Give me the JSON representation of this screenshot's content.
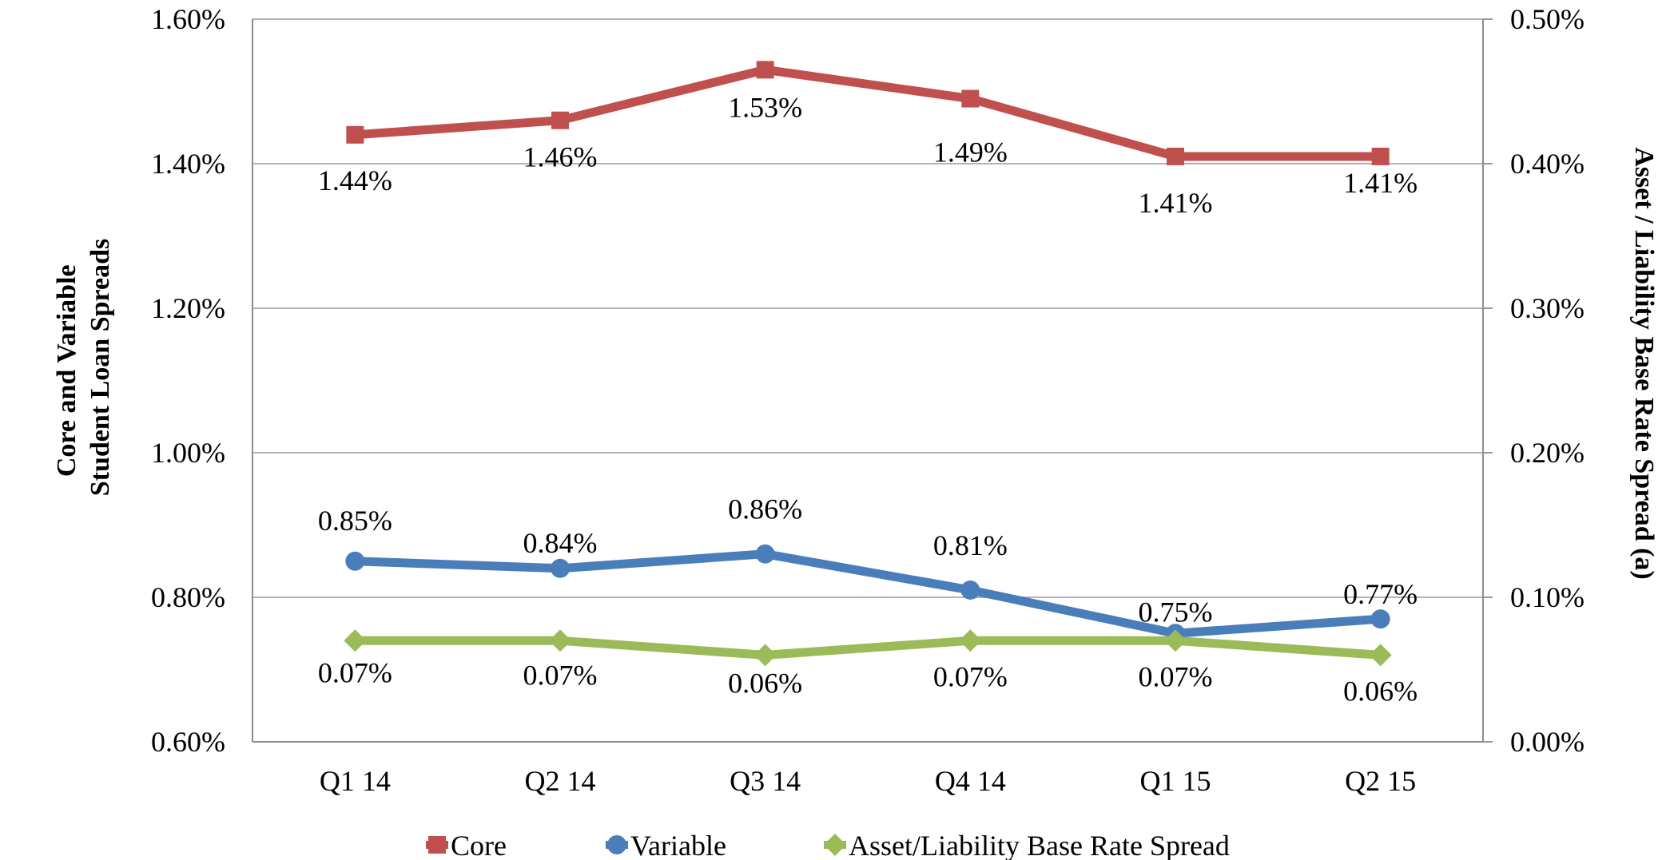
{
  "chart_data": {
    "type": "line",
    "title": "",
    "categories": [
      "Q1 14",
      "Q2 14",
      "Q3 14",
      "Q4 14",
      "Q1 15",
      "Q2 15"
    ],
    "y_left": {
      "label_lines": [
        "Core and Variable",
        "Student Loan Spreads"
      ],
      "range": [
        0.6,
        1.6
      ],
      "ticks": [
        0.6,
        0.8,
        1.0,
        1.2,
        1.4,
        1.6
      ],
      "tick_labels": [
        "0.60%",
        "0.80%",
        "1.00%",
        "1.20%",
        "1.40%",
        "1.60%"
      ]
    },
    "y_right": {
      "label": "Asset / Liability Base Rate Spread (a)",
      "range": [
        0.0,
        0.5
      ],
      "ticks": [
        0.0,
        0.1,
        0.2,
        0.3,
        0.4,
        0.5
      ],
      "tick_labels": [
        "0.00%",
        "0.10%",
        "0.20%",
        "0.30%",
        "0.40%",
        "0.50%"
      ]
    },
    "grid": true,
    "legend_position": "bottom",
    "series": [
      {
        "name": "Core",
        "axis": "left",
        "color": "#c0504d",
        "marker": "square",
        "values": [
          1.44,
          1.46,
          1.53,
          1.49,
          1.41,
          1.41
        ],
        "labels": [
          "1.44%",
          "1.46%",
          "1.53%",
          "1.49%",
          "1.41%",
          "1.41%"
        ]
      },
      {
        "name": "Variable",
        "axis": "left",
        "color": "#4a7ebb",
        "marker": "circle",
        "values": [
          0.85,
          0.84,
          0.86,
          0.81,
          0.75,
          0.77
        ],
        "labels": [
          "0.85%",
          "0.84%",
          "0.86%",
          "0.81%",
          "0.75%",
          "0.77%"
        ]
      },
      {
        "name": "Asset/Liability Base Rate Spread",
        "axis": "right",
        "color": "#9bbb59",
        "marker": "diamond",
        "values": [
          0.07,
          0.07,
          0.06,
          0.07,
          0.07,
          0.06
        ],
        "labels": [
          "0.07%",
          "0.07%",
          "0.06%",
          "0.07%",
          "0.07%",
          "0.06%"
        ]
      }
    ]
  }
}
